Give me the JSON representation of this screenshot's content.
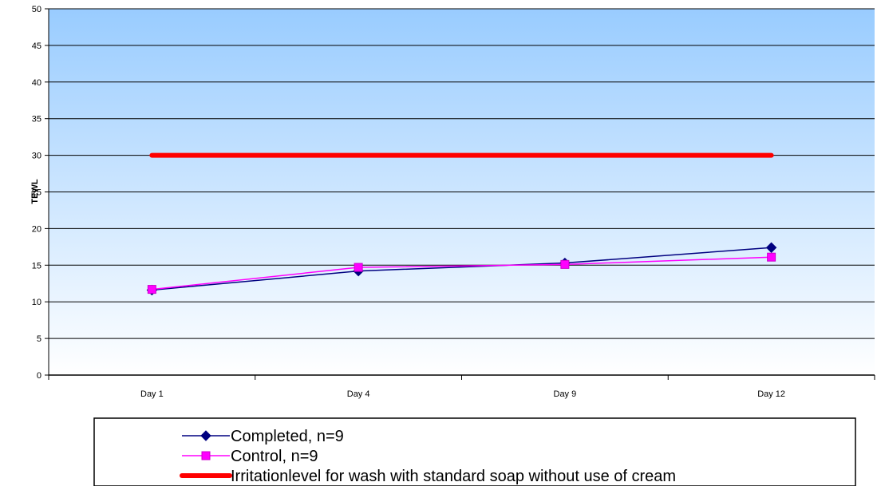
{
  "chart_data": {
    "type": "line",
    "title": "",
    "xlabel": "",
    "ylabel": "TEWL",
    "categories": [
      "Day 1",
      "Day 4",
      "Day 9",
      "Day 12"
    ],
    "ylim": [
      0,
      50
    ],
    "yticks": [
      0,
      5,
      10,
      15,
      20,
      25,
      30,
      35,
      40,
      45,
      50
    ],
    "grid": true,
    "legend_position": "bottom",
    "series": [
      {
        "name": "Completed, n=9",
        "values": [
          11.6,
          14.2,
          15.3,
          17.4
        ],
        "color": "#000080",
        "marker": "diamond"
      },
      {
        "name": "Control, n=9",
        "values": [
          11.7,
          14.7,
          15.1,
          16.1
        ],
        "color": "#FF00FF",
        "marker": "square"
      },
      {
        "name": "Irritationlevel for wash with standard soap without use of cream",
        "values": [
          30,
          30,
          30,
          30
        ],
        "color": "#FF0000",
        "marker": "none"
      }
    ],
    "background_gradient": [
      "#99CCFF",
      "#FFFFFF"
    ]
  }
}
